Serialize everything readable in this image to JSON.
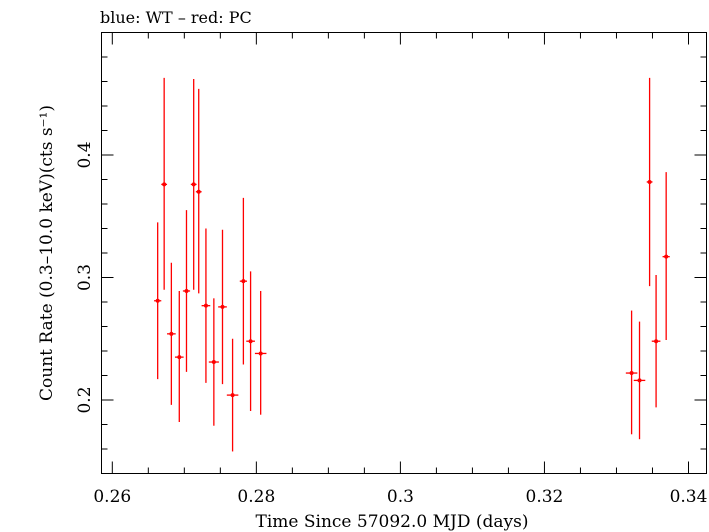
{
  "chart_data": {
    "type": "scatter",
    "title": "blue: WT – red: PC",
    "xlabel": "Time Since 57092.0 MJD (days)",
    "ylabel": "Count Rate (0.3–10.0 keV)(cts s⁻¹)",
    "xlim": [
      0.2585,
      0.3425
    ],
    "ylim": [
      0.14,
      0.5
    ],
    "xticks": [
      0.26,
      0.28,
      0.3,
      0.32,
      0.34
    ],
    "xtick_labels": [
      "0.26",
      "0.28",
      "0.3",
      "0.32",
      "0.34"
    ],
    "yticks": [
      0.2,
      0.3,
      0.4
    ],
    "ytick_labels": [
      "0.2",
      "0.3",
      "0.4"
    ],
    "grid": false,
    "series": [
      {
        "color": "#ff0000",
        "points": [
          {
            "x": 0.2663,
            "y": 0.281,
            "xerr": 0.0005,
            "ylo": 0.217,
            "yhi": 0.345
          },
          {
            "x": 0.2672,
            "y": 0.376,
            "xerr": 0.0004,
            "ylo": 0.29,
            "yhi": 0.463
          },
          {
            "x": 0.2682,
            "y": 0.254,
            "xerr": 0.0006,
            "ylo": 0.196,
            "yhi": 0.312
          },
          {
            "x": 0.2693,
            "y": 0.235,
            "xerr": 0.0006,
            "ylo": 0.182,
            "yhi": 0.289
          },
          {
            "x": 0.2703,
            "y": 0.289,
            "xerr": 0.0005,
            "ylo": 0.223,
            "yhi": 0.355
          },
          {
            "x": 0.2713,
            "y": 0.376,
            "xerr": 0.0004,
            "ylo": 0.29,
            "yhi": 0.462
          },
          {
            "x": 0.272,
            "y": 0.37,
            "xerr": 0.0004,
            "ylo": 0.287,
            "yhi": 0.454
          },
          {
            "x": 0.273,
            "y": 0.277,
            "xerr": 0.0006,
            "ylo": 0.214,
            "yhi": 0.34
          },
          {
            "x": 0.2741,
            "y": 0.231,
            "xerr": 0.0007,
            "ylo": 0.179,
            "yhi": 0.283
          },
          {
            "x": 0.2753,
            "y": 0.276,
            "xerr": 0.0006,
            "ylo": 0.213,
            "yhi": 0.339
          },
          {
            "x": 0.2767,
            "y": 0.204,
            "xerr": 0.0008,
            "ylo": 0.158,
            "yhi": 0.25
          },
          {
            "x": 0.2782,
            "y": 0.297,
            "xerr": 0.0005,
            "ylo": 0.229,
            "yhi": 0.365
          },
          {
            "x": 0.2792,
            "y": 0.248,
            "xerr": 0.0006,
            "ylo": 0.191,
            "yhi": 0.305
          },
          {
            "x": 0.2806,
            "y": 0.238,
            "xerr": 0.0008,
            "ylo": 0.188,
            "yhi": 0.289
          },
          {
            "x": 0.3321,
            "y": 0.222,
            "xerr": 0.0008,
            "ylo": 0.172,
            "yhi": 0.273
          },
          {
            "x": 0.3332,
            "y": 0.216,
            "xerr": 0.0008,
            "ylo": 0.168,
            "yhi": 0.264
          },
          {
            "x": 0.3346,
            "y": 0.378,
            "xerr": 0.0004,
            "ylo": 0.293,
            "yhi": 0.463
          },
          {
            "x": 0.3355,
            "y": 0.248,
            "xerr": 0.0006,
            "ylo": 0.194,
            "yhi": 0.302
          },
          {
            "x": 0.3369,
            "y": 0.317,
            "xerr": 0.0005,
            "ylo": 0.249,
            "yhi": 0.386
          }
        ]
      }
    ]
  }
}
